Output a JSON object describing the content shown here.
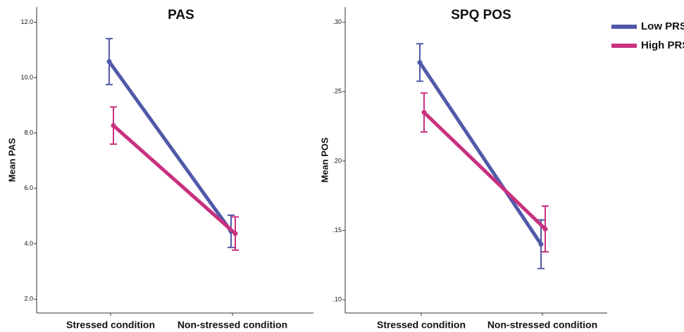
{
  "chart_data": [
    {
      "type": "line",
      "title": "PAS",
      "ylabel": "Mean PAS",
      "categories": [
        "Stressed condition",
        "Non-stressed condition"
      ],
      "series": [
        {
          "name": "Low PRS",
          "color": "#5059a8",
          "values": [
            10.58,
            4.45
          ],
          "errors": [
            0.83,
            0.58
          ]
        },
        {
          "name": "High PRS",
          "color": "#c9307f",
          "values": [
            8.27,
            4.37
          ],
          "errors": [
            0.67,
            0.6
          ]
        }
      ],
      "ylim": [
        1.5,
        12.55
      ],
      "yticks": [
        {
          "value": 2,
          "label": "2.0"
        },
        {
          "value": 4,
          "label": "4.0"
        },
        {
          "value": 6,
          "label": "6.0"
        },
        {
          "value": 8,
          "label": "8.0"
        },
        {
          "value": 10,
          "label": "10.0"
        },
        {
          "value": 12,
          "label": "12.0"
        }
      ]
    },
    {
      "type": "line",
      "title": "SPQ POS",
      "ylabel": "Mean POS",
      "categories": [
        "Stressed condition",
        "Non-stressed condition"
      ],
      "series": [
        {
          "name": "Low PRS",
          "color": "#5059a8",
          "values": [
            0.271,
            0.14
          ],
          "errors": [
            0.0135,
            0.0175
          ]
        },
        {
          "name": "High PRS",
          "color": "#c9307f",
          "values": [
            0.235,
            0.151
          ],
          "errors": [
            0.014,
            0.0165
          ]
        }
      ],
      "ylim": [
        0.0904,
        0.311
      ],
      "yticks": [
        {
          "value": 0.1,
          "label": ".10"
        },
        {
          "value": 0.15,
          "label": ".15"
        },
        {
          "value": 0.2,
          "label": ".20"
        },
        {
          "value": 0.25,
          "label": ".25"
        },
        {
          "value": 0.3,
          "label": ".30"
        }
      ],
      "legend": "top-right"
    }
  ]
}
